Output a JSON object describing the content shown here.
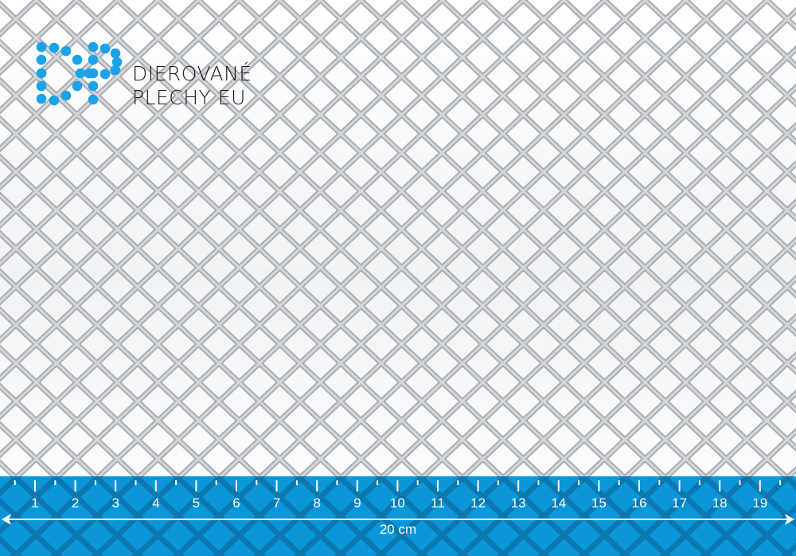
{
  "brand": {
    "name_line1": "DIEROVANÉ",
    "name_line2": "PLECHY EU",
    "logo_letters": "DP",
    "color": "#1aa3e8"
  },
  "ruler": {
    "color": "#0a96d9",
    "marks": [
      "1",
      "2",
      "3",
      "4",
      "5",
      "6",
      "7",
      "8",
      "9",
      "10",
      "11",
      "12",
      "13",
      "14",
      "15",
      "16",
      "17",
      "18",
      "19"
    ],
    "length_label": "20 cm"
  },
  "subject": "expanded-metal-mesh"
}
